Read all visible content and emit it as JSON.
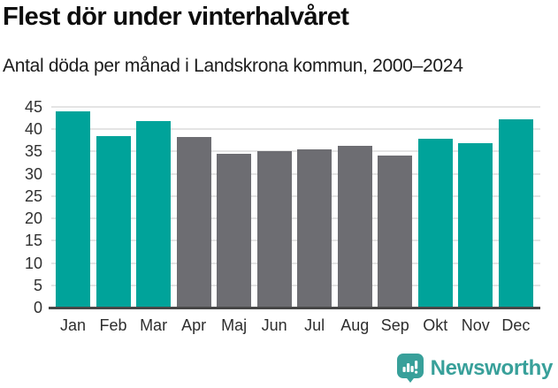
{
  "header": {
    "title": "Flest dör under vinterhalvåret",
    "subtitle": "Antal döda per månad i Landskrona kommun, 2000–2024"
  },
  "chart_data": {
    "type": "bar",
    "categories": [
      "Jan",
      "Feb",
      "Mar",
      "Apr",
      "Maj",
      "Jun",
      "Jul",
      "Aug",
      "Sep",
      "Okt",
      "Nov",
      "Dec"
    ],
    "values": [
      44.0,
      38.4,
      41.9,
      38.2,
      34.4,
      35.0,
      35.4,
      36.3,
      34.1,
      37.9,
      36.8,
      42.2
    ],
    "bar_groups": [
      "winter",
      "winter",
      "winter",
      "summer",
      "summer",
      "summer",
      "summer",
      "summer",
      "summer",
      "winter",
      "winter",
      "winter"
    ],
    "palette": {
      "winter": "#00a39a",
      "summer": "#6d6d72"
    },
    "title": "Flest dör under vinterhalvåret",
    "subtitle": "Antal döda per månad i Landskrona kommun, 2000–2024",
    "xlabel": "",
    "ylabel": "",
    "ylim": [
      0,
      45
    ],
    "yticks": [
      0,
      5,
      10,
      15,
      20,
      25,
      30,
      35,
      40,
      45
    ],
    "grid": true,
    "legend_position": "none"
  },
  "footer": {
    "brand": "Newsworthy"
  },
  "colors": {
    "accent_teal": "#00a39a",
    "neutral_gray": "#6d6d72",
    "brand_teal": "#38a09a",
    "gridline": "#e4e4e4",
    "axis_line": "#474747"
  }
}
